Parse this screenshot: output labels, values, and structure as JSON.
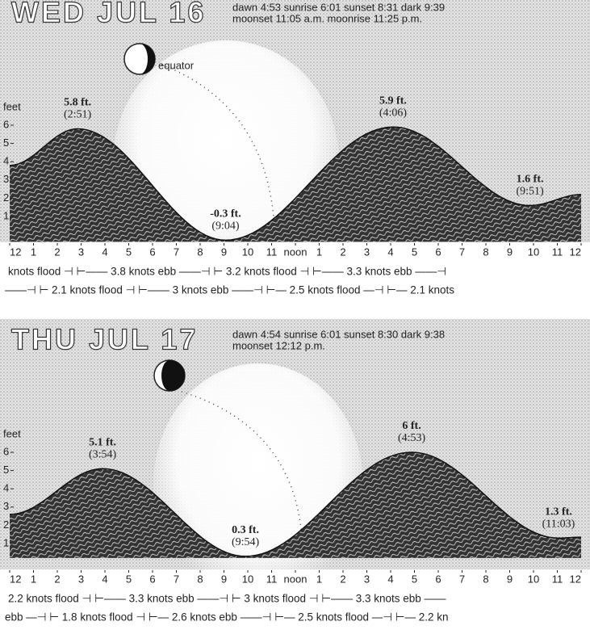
{
  "chart_data": [
    {
      "type": "area",
      "title": "WED JUL 16",
      "subtitle": [
        "dawn 4:53 sunrise 6:01 sunset 8:31 dark 9:39",
        "moonset 11:05 a.m. moonrise 11:25 p.m."
      ],
      "moon_label": "equator",
      "ylabel": "feet",
      "x": [
        0,
        2.85,
        9.067,
        16.1,
        21.85,
        24
      ],
      "values": [
        3.8,
        5.8,
        -0.3,
        5.9,
        1.6,
        2.2
      ],
      "value_labels": [
        null,
        "5.8 ft.",
        "-0.3 ft.",
        "5.9 ft.",
        "1.6 ft.",
        null
      ],
      "time_labels": [
        null,
        "(2:51)",
        "(9:04)",
        "(4:06)",
        "(9:51)",
        null
      ],
      "xlim": [
        0,
        24
      ],
      "xticks": [
        {
          "value": 0,
          "label": "12"
        },
        1,
        2,
        3,
        4,
        5,
        6,
        7,
        8,
        9,
        10,
        11,
        {
          "value": 12,
          "label": "noon"
        },
        {
          "value": 13,
          "label": "1"
        },
        {
          "value": 14,
          "label": "2"
        },
        {
          "value": 15,
          "label": "3"
        },
        {
          "value": 16,
          "label": "4"
        },
        {
          "value": 17,
          "label": "5"
        },
        {
          "value": 18,
          "label": "6"
        },
        {
          "value": 19,
          "label": "7"
        },
        {
          "value": 20,
          "label": "8"
        },
        {
          "value": 21,
          "label": "9"
        },
        {
          "value": 22,
          "label": "10"
        },
        {
          "value": 23,
          "label": "11"
        },
        {
          "value": 24,
          "label": "12"
        }
      ],
      "ylim": [
        0,
        7
      ],
      "yticks": [
        1,
        2,
        3,
        4,
        5,
        6
      ],
      "currents": [
        "knots flood ⊣ ⊢—— 3.8 knots ebb ——⊣ ⊢ 3.2 knots flood ⊣ ⊢—— 3.3 knots ebb ——⊣",
        "——⊣ ⊢ 2.1 knots flood ⊣ ⊢—— 3 knots ebb ——⊣ ⊢— 2.5 knots flood —⊣ ⊢— 2.1 knots"
      ]
    },
    {
      "type": "area",
      "title": "THU JUL 17",
      "subtitle": [
        "dawn 4:54 sunrise 6:01 sunset 8:30 dark 9:38",
        "moonset 12:12 p.m."
      ],
      "ylabel": "feet",
      "x": [
        0,
        3.9,
        9.9,
        16.883,
        23.05,
        24
      ],
      "values": [
        2.6,
        5.1,
        0.3,
        6,
        1.3,
        1.35
      ],
      "value_labels": [
        null,
        "5.1 ft.",
        "0.3 ft.",
        "6 ft.",
        "1.3 ft.",
        null
      ],
      "time_labels": [
        null,
        "(3:54)",
        "(9:54)",
        "(4:53)",
        "(11:03)",
        null
      ],
      "xlim": [
        0,
        24
      ],
      "xticks": [
        {
          "value": 0,
          "label": "12"
        },
        1,
        2,
        3,
        4,
        5,
        6,
        7,
        8,
        9,
        10,
        11,
        {
          "value": 12,
          "label": "noon"
        },
        {
          "value": 13,
          "label": "1"
        },
        {
          "value": 14,
          "label": "2"
        },
        {
          "value": 15,
          "label": "3"
        },
        {
          "value": 16,
          "label": "4"
        },
        {
          "value": 17,
          "label": "5"
        },
        {
          "value": 18,
          "label": "6"
        },
        {
          "value": 19,
          "label": "7"
        },
        {
          "value": 20,
          "label": "8"
        },
        {
          "value": 21,
          "label": "9"
        },
        {
          "value": 22,
          "label": "10"
        },
        {
          "value": 23,
          "label": "11"
        },
        {
          "value": 24,
          "label": "12"
        }
      ],
      "ylim": [
        0,
        7
      ],
      "yticks": [
        1,
        2,
        3,
        4,
        5,
        6
      ],
      "currents": [
        "2.2 knots flood ⊣ ⊢—— 3.3 knots ebb ——⊣ ⊢ 3 knots flood ⊣ ⊢—— 3.3 knots ebb ——",
        "ebb —⊣ ⊢ 1.8 knots flood ⊣ ⊢— 2.6 knots ebb ——⊣ ⊢— 2.5 knots flood —⊣ ⊢— 2.2 kn"
      ]
    }
  ]
}
